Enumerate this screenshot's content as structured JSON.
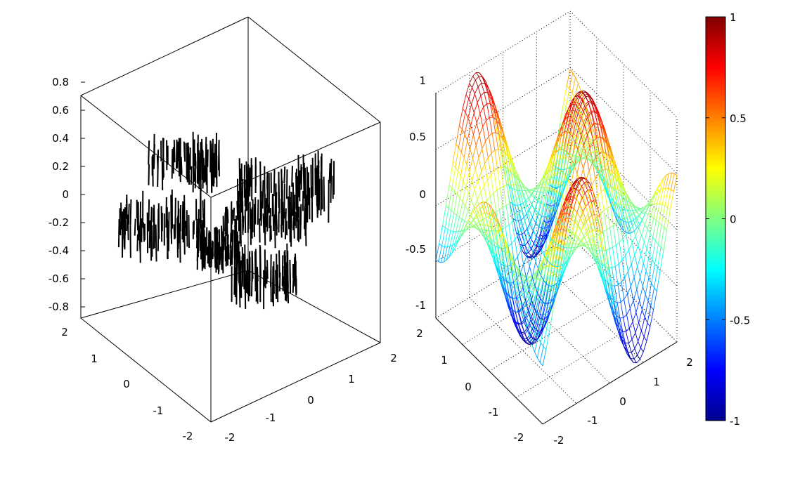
{
  "chart_data": [
    {
      "type": "scatter",
      "style": "3d-stem-noise",
      "box": "full",
      "grid": false,
      "z_ticks": [
        "0.8",
        "0.6",
        "0.4",
        "0.2",
        "0",
        "-0.2",
        "-0.4",
        "-0.6",
        "-0.8"
      ],
      "x_ticks": [
        "-2",
        "-1",
        "0",
        "1",
        "2"
      ],
      "y_ticks": [
        "-2",
        "-1",
        "0",
        "1",
        "2"
      ],
      "xlim": [
        -2,
        2
      ],
      "ylim": [
        -2,
        2
      ],
      "zlim": [
        -0.9,
        0.8
      ],
      "color": "#000000"
    },
    {
      "type": "surface",
      "style": "3d-mesh",
      "function": "z = sin(pi*x/2) * cos(pi*y/2) style saddle-wave",
      "box": "open",
      "grid": true,
      "z_ticks": [
        "1",
        "0.5",
        "0",
        "-0.5",
        "-1"
      ],
      "x_ticks": [
        "-2",
        "-1",
        "0",
        "1",
        "2"
      ],
      "y_ticks": [
        "-2",
        "-1",
        "0",
        "1",
        "2"
      ],
      "xlim": [
        -2,
        2
      ],
      "ylim": [
        -2,
        2
      ],
      "zlim": [
        -1,
        1
      ],
      "colormap": "jet",
      "colorbar": {
        "ticks": [
          "1",
          "0.5",
          "0",
          "-0.5",
          "-1"
        ],
        "range": [
          -1,
          1
        ],
        "placement": "right"
      }
    }
  ]
}
